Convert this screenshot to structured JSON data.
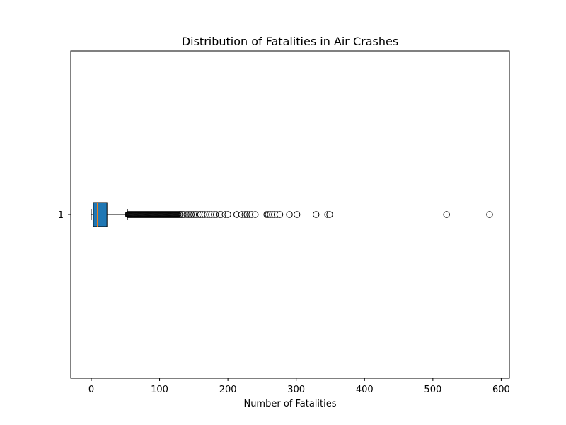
{
  "chart_data": {
    "type": "boxplot",
    "orientation": "horizontal",
    "title": "Distribution of Fatalities in Air Crashes",
    "xlabel": "Number of Fatalities",
    "ylabel": "",
    "xlim": [
      -30,
      612
    ],
    "xticks": [
      0,
      100,
      200,
      300,
      400,
      500,
      600
    ],
    "yticks": [
      "1"
    ],
    "grid": false,
    "colors": {
      "box_fill": "#1f77b4",
      "median_line": "#ff7f0e",
      "outline": "#000000",
      "outlier_face": "#ffffff"
    },
    "boxes": [
      {
        "category": "1",
        "whisker_low": 0,
        "q1": 3,
        "median": 9,
        "q3": 23,
        "whisker_high": 53,
        "outliers": [
          54,
          55,
          56,
          57,
          58,
          59,
          60,
          61,
          62,
          63,
          64,
          65,
          66,
          67,
          68,
          69,
          70,
          71,
          72,
          73,
          74,
          75,
          76,
          77,
          78,
          79,
          80,
          81,
          82,
          83,
          84,
          85,
          86,
          87,
          88,
          89,
          90,
          91,
          92,
          93,
          94,
          95,
          96,
          97,
          98,
          99,
          100,
          101,
          102,
          103,
          104,
          105,
          106,
          107,
          108,
          109,
          110,
          111,
          112,
          113,
          114,
          115,
          116,
          117,
          118,
          119,
          120,
          121,
          122,
          123,
          124,
          125,
          126,
          127,
          128,
          129,
          130,
          131,
          132,
          133,
          135,
          137,
          140,
          142,
          144,
          146,
          148,
          150,
          153,
          155,
          158,
          160,
          163,
          166,
          170,
          173,
          176,
          180,
          183,
          188,
          190,
          196,
          200,
          213,
          220,
          225,
          228,
          232,
          235,
          240,
          257,
          259,
          262,
          265,
          268,
          272,
          276,
          290,
          301,
          329,
          346,
          349,
          520,
          583
        ]
      }
    ]
  }
}
